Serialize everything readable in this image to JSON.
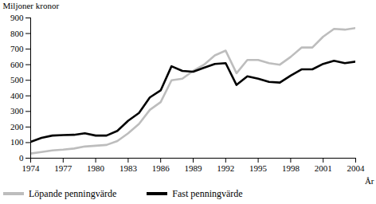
{
  "chart_data": {
    "type": "line",
    "y_label": "Miljoner kronor",
    "x_label": "År",
    "x": [
      1974,
      1975,
      1976,
      1977,
      1978,
      1979,
      1980,
      1981,
      1982,
      1983,
      1984,
      1985,
      1986,
      1987,
      1988,
      1989,
      1990,
      1991,
      1992,
      1993,
      1994,
      1995,
      1996,
      1997,
      1998,
      1999,
      2000,
      2001,
      2002,
      2003,
      2004
    ],
    "series": [
      {
        "name": "Löpande penningvärde",
        "color": "#bdbdbd",
        "values": [
          30,
          40,
          50,
          55,
          62,
          75,
          80,
          85,
          110,
          160,
          220,
          310,
          360,
          500,
          510,
          560,
          600,
          660,
          690,
          545,
          630,
          630,
          610,
          600,
          650,
          710,
          710,
          780,
          830,
          825,
          835
        ]
      },
      {
        "name": "Fast penningvärde",
        "color": "#000000",
        "values": [
          105,
          130,
          145,
          148,
          150,
          160,
          145,
          145,
          175,
          240,
          290,
          390,
          435,
          590,
          560,
          555,
          580,
          605,
          610,
          470,
          525,
          510,
          490,
          485,
          530,
          570,
          570,
          605,
          625,
          610,
          620
        ]
      }
    ],
    "xlim": [
      1974,
      2004
    ],
    "xticks": [
      1974,
      1977,
      1980,
      1983,
      1986,
      1989,
      1992,
      1995,
      1998,
      2001,
      2004
    ],
    "ylim": [
      0,
      900
    ],
    "yticks": [
      0,
      100,
      200,
      300,
      400,
      500,
      600,
      700,
      800,
      900
    ],
    "grid": false,
    "legend": "bottom"
  }
}
